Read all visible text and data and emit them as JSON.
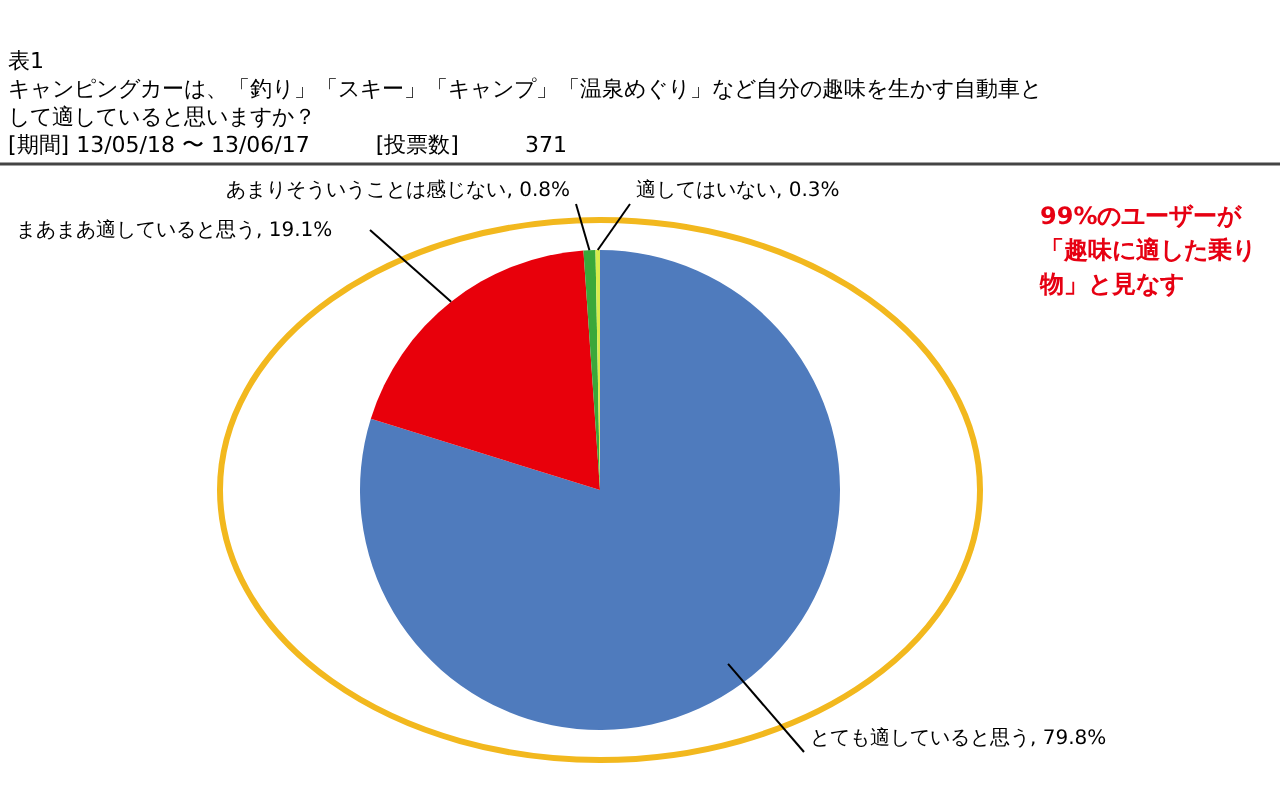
{
  "chart_data": {
    "type": "pie",
    "title": "キャンピングカーは、「釣り」「スキー」「キャンプ」「温泉めぐり」など自分の趣味を生かす自動車として適していると思いますか？",
    "subtitle": "[期間] 13/05/18 〜 13/06/17　　　[投票数]　　　371",
    "categories": [
      "とても適していると思う",
      "まあまあ適していると思う",
      "あまりそういうことは感じない",
      "適してはいない"
    ],
    "values": [
      79.8,
      19.1,
      0.8,
      0.3
    ],
    "colors": [
      "#4f7bbd",
      "#e8000b",
      "#3aa83a",
      "#d7ec4c"
    ],
    "value_labels": [
      "79.8%",
      "19.1%",
      "0.8%",
      "0.3%"
    ],
    "annotations": [
      "表1",
      "99%のユーザーが「趣味に適した乗り物」と見なす"
    ]
  }
}
